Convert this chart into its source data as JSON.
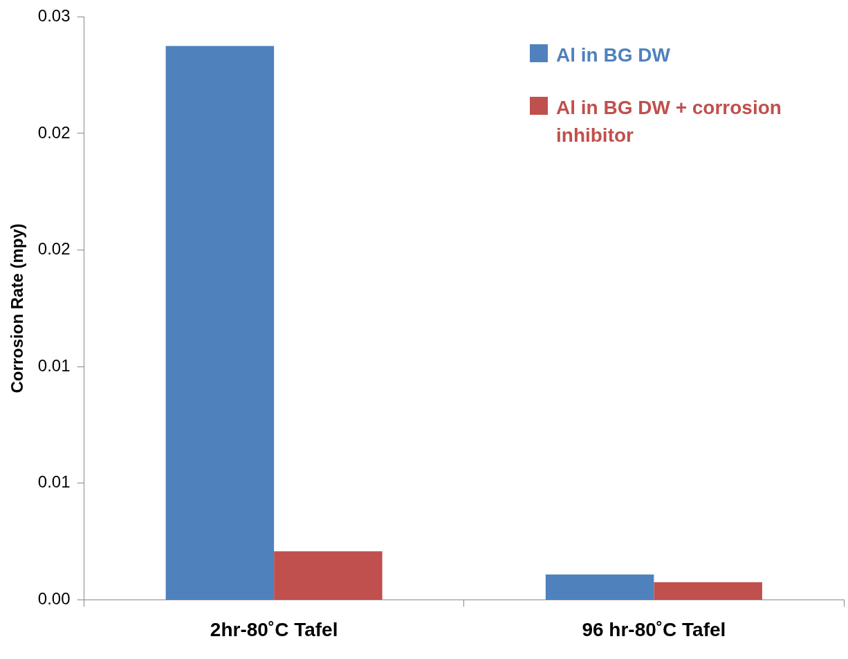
{
  "chart_data": {
    "type": "bar",
    "ylabel": "Corrosion Rate (mpy)",
    "categories": [
      "2hr-80˚C Tafel",
      "96 hr-80˚C Tafel"
    ],
    "series": [
      {
        "name": "Al in BG DW",
        "color": "#4f81bd",
        "values": [
          0.0285,
          0.0013
        ]
      },
      {
        "name": "Al in BG DW + corrosion inhibitor",
        "color": "#c0504d",
        "values": [
          0.0025,
          0.0009
        ]
      }
    ],
    "ylim": [
      0,
      0.03
    ],
    "yticks": [
      {
        "value": 0,
        "label": "0.00"
      },
      {
        "value": 0.006,
        "label": "0.01"
      },
      {
        "value": 0.012,
        "label": "0.01"
      },
      {
        "value": 0.018,
        "label": "0.02"
      },
      {
        "value": 0.024,
        "label": "0.02"
      },
      {
        "value": 0.03,
        "label": "0.03"
      }
    ],
    "grid": false,
    "legend": "top right"
  }
}
